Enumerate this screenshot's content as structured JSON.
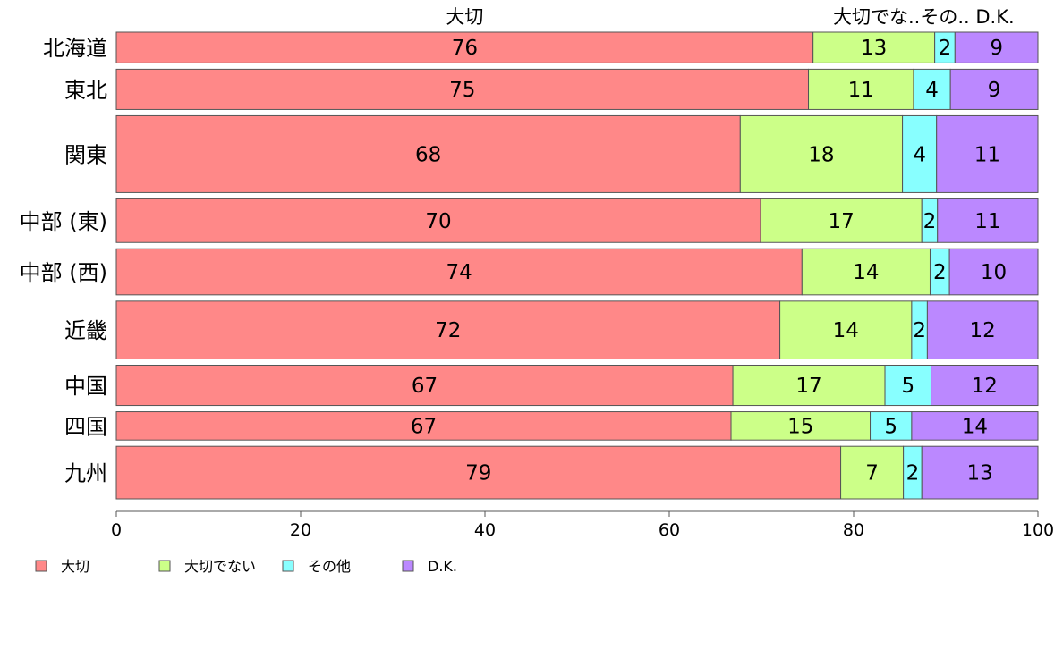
{
  "chart_data": {
    "type": "bar",
    "orientation": "horizontal",
    "stacked": true,
    "categories": [
      "北海道",
      "東北",
      "関東",
      "中部 (東)",
      "中部 (西)",
      "近畿",
      "中国",
      "四国",
      "九州"
    ],
    "series": [
      {
        "name": "大切",
        "color": "#ff8888",
        "values": [
          76,
          75,
          68,
          70,
          74,
          72,
          67,
          67,
          79
        ]
      },
      {
        "name": "大切でない",
        "color": "#ccff88",
        "values": [
          13,
          11,
          18,
          17,
          14,
          14,
          17,
          15,
          7
        ]
      },
      {
        "name": "その他",
        "color": "#88ffff",
        "values": [
          2,
          4,
          4,
          2,
          2,
          2,
          5,
          5,
          2
        ]
      },
      {
        "name": "D.K.",
        "color": "#bb88ff",
        "values": [
          9,
          9,
          11,
          11,
          10,
          12,
          12,
          14,
          13
        ]
      }
    ],
    "actual_values": [
      [
        75.6,
        13.2,
        2.2,
        9.0
      ],
      [
        75.1,
        11.4,
        4.0,
        9.5
      ],
      [
        67.7,
        17.6,
        3.7,
        11.0
      ],
      [
        69.9,
        17.5,
        1.7,
        10.9
      ],
      [
        74.4,
        13.9,
        2.1,
        9.6
      ],
      [
        72.0,
        14.3,
        1.7,
        12.0
      ],
      [
        66.9,
        16.5,
        5.0,
        11.6
      ],
      [
        66.7,
        15.1,
        4.5,
        13.7
      ],
      [
        78.6,
        6.8,
        2.0,
        12.6
      ]
    ],
    "bar_weights": [
      1.0,
      1.31,
      2.5,
      1.42,
      1.5,
      1.88,
      1.31,
      0.92,
      1.71
    ],
    "top_labels": [
      "大切",
      "大切でな..その.. D.K."
    ],
    "xticks": [
      0,
      20,
      40,
      60,
      80,
      100
    ],
    "xlim": [
      0,
      100
    ],
    "grid": false,
    "legend_position": "bottom-left",
    "border_color": "#555555"
  }
}
